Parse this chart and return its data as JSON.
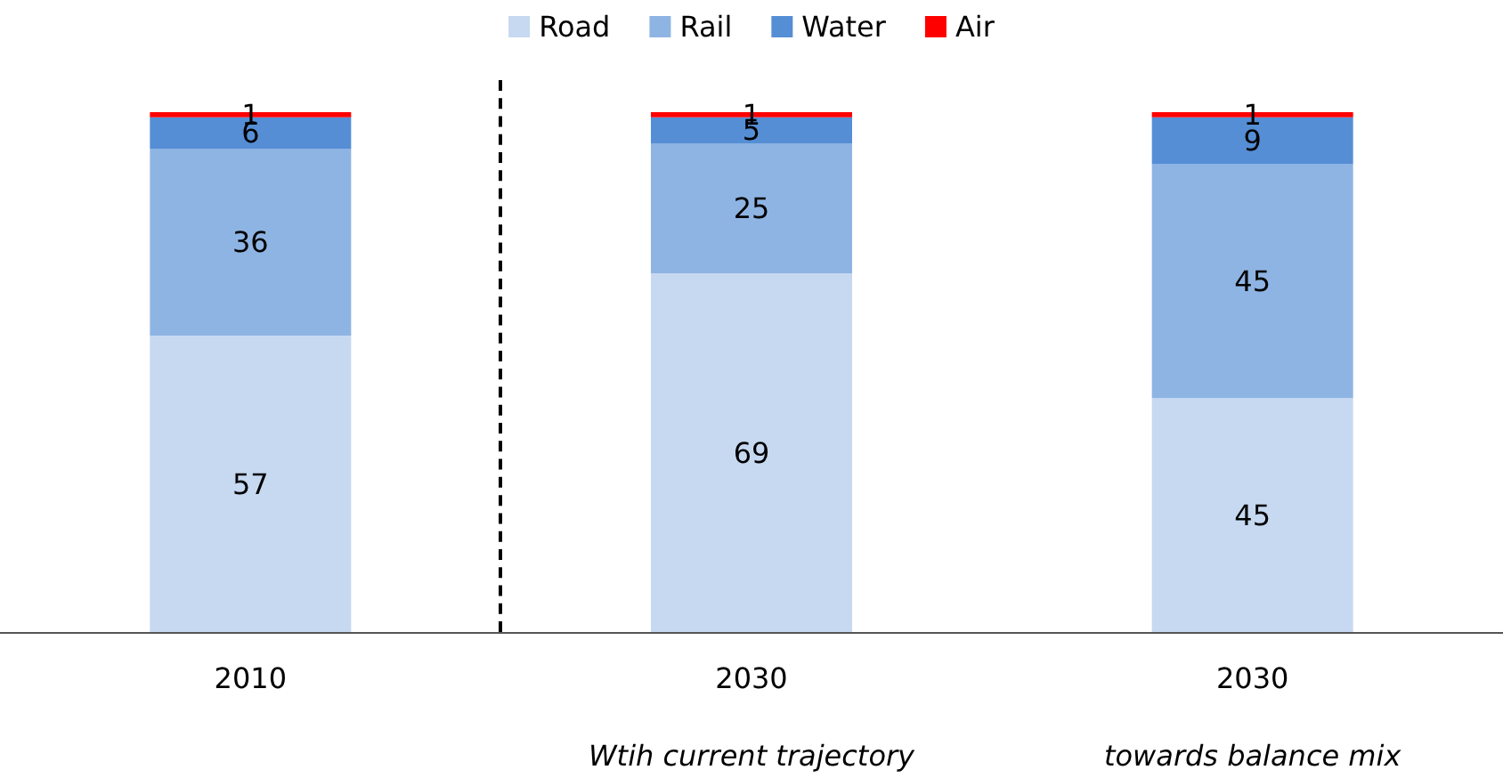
{
  "chart_data": {
    "type": "bar",
    "stacked": true,
    "categories": [
      "2010",
      "2030",
      "2030"
    ],
    "series": [
      {
        "name": "Road",
        "color": "#c6d9f1",
        "values": [
          57,
          69,
          45
        ]
      },
      {
        "name": "Rail",
        "color": "#8eb4e3",
        "values": [
          36,
          25,
          45
        ]
      },
      {
        "name": "Water",
        "color": "#558ed5",
        "values": [
          6,
          5,
          9
        ]
      },
      {
        "name": "Air",
        "color": "#ff0000",
        "values": [
          1,
          1,
          1
        ]
      }
    ],
    "data_labels": true,
    "legend": "top",
    "annotations": [
      "Wtih current trajectory",
      "towards balance mix"
    ]
  }
}
